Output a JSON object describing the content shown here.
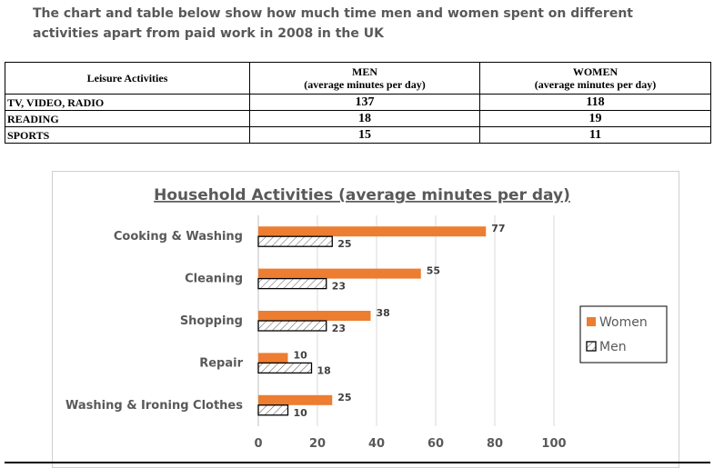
{
  "heading": {
    "line1": "The chart and table below show how much time men and women spent on different",
    "line2": "activities apart from paid work in 2008 in the UK"
  },
  "table": {
    "headers": {
      "activity": "Leisure Activities",
      "men": "MEN",
      "men_sub": "(average minutes per day)",
      "women": "WOMEN",
      "women_sub": "(average minutes per day)"
    },
    "rows": [
      {
        "activity": "TV, VIDEO, RADIO",
        "men": "137",
        "women": "118"
      },
      {
        "activity": "READING",
        "men": "18",
        "women": "19"
      },
      {
        "activity": "SPORTS",
        "men": "15",
        "women": "11"
      }
    ]
  },
  "chart_data": {
    "type": "bar",
    "orientation": "horizontal",
    "title": "Household Activities (average minutes per day)",
    "categories": [
      "Cooking & Washing",
      "Cleaning",
      "Shopping",
      "Repair",
      "Washing & Ironing Clothes"
    ],
    "series": [
      {
        "name": "Women",
        "values": [
          77,
          55,
          38,
          10,
          25
        ],
        "color": "#ED7D31",
        "pattern": "solid"
      },
      {
        "name": "Men",
        "values": [
          25,
          23,
          23,
          18,
          10
        ],
        "color": "#000000",
        "pattern": "hatched"
      }
    ],
    "xlim": [
      0,
      100
    ],
    "xticks": [
      0,
      20,
      40,
      60,
      80,
      100
    ],
    "grid": true,
    "legend": "right",
    "data_labels": true
  }
}
